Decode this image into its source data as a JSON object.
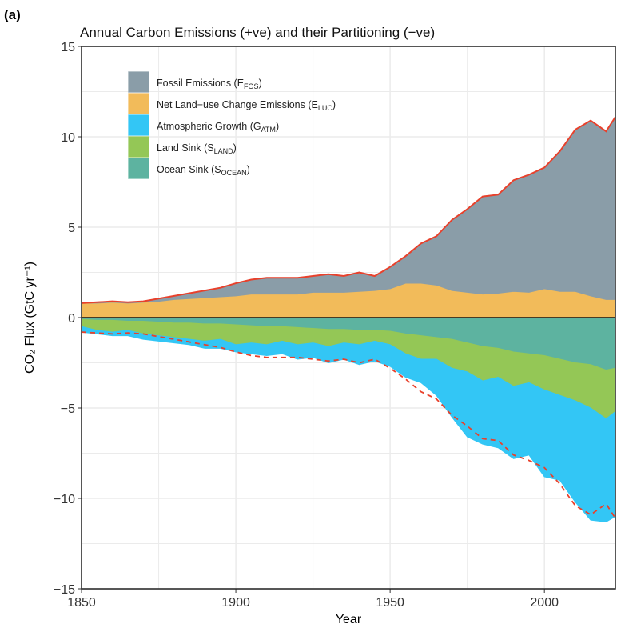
{
  "panel_label": "(a)",
  "chart_data": {
    "type": "area",
    "title": "Annual Carbon Emissions (+ve) and their Partitioning (−ve)",
    "xlabel": "Year",
    "ylabel": "CO₂ Flux (GtC yr⁻¹)",
    "xlim": [
      1850,
      2023
    ],
    "ylim": [
      -15,
      15
    ],
    "xticks": [
      "1850",
      "1900",
      "1950",
      "2000"
    ],
    "yticks": [
      "15",
      "10",
      "5",
      "0",
      "−5",
      "−10",
      "−15"
    ],
    "grid": true,
    "legend_position": "top-left",
    "x": [
      1850,
      1855,
      1860,
      1865,
      1870,
      1875,
      1880,
      1885,
      1890,
      1895,
      1900,
      1905,
      1910,
      1915,
      1920,
      1925,
      1930,
      1935,
      1940,
      1945,
      1950,
      1955,
      1960,
      1965,
      1970,
      1975,
      1980,
      1985,
      1990,
      1995,
      2000,
      2005,
      2010,
      2015,
      2020,
      2023
    ],
    "series": [
      {
        "name": "Fossil Emissions (E_FOS)",
        "label": "Fossil Emissions (E",
        "sub": "FOS",
        "sign": 1,
        "color": "#8a9da8",
        "values": [
          0.0,
          0.05,
          0.05,
          0.05,
          0.05,
          0.15,
          0.2,
          0.3,
          0.4,
          0.5,
          0.7,
          0.8,
          0.9,
          0.9,
          0.9,
          0.9,
          1.0,
          0.9,
          1.05,
          0.8,
          1.2,
          1.5,
          2.2,
          2.7,
          3.9,
          4.6,
          5.4,
          5.45,
          6.15,
          6.5,
          6.7,
          7.75,
          8.95,
          9.7,
          9.3,
          10.1
        ]
      },
      {
        "name": "Net Land-use Change Emissions (E_LUC)",
        "label": "Net Land−use Change Emissions (E",
        "sub": "LUC",
        "sign": 1,
        "color": "#f2bb5a",
        "values": [
          0.8,
          0.8,
          0.85,
          0.8,
          0.85,
          0.9,
          1.0,
          1.05,
          1.1,
          1.15,
          1.2,
          1.3,
          1.3,
          1.3,
          1.3,
          1.4,
          1.4,
          1.4,
          1.45,
          1.5,
          1.6,
          1.9,
          1.9,
          1.8,
          1.5,
          1.4,
          1.3,
          1.35,
          1.45,
          1.4,
          1.6,
          1.45,
          1.45,
          1.2,
          1.0,
          1.0
        ]
      },
      {
        "name": "Atmospheric Growth (G_ATM)",
        "label": "Atmospheric Growth (G",
        "sub": "ATM",
        "sign": -1,
        "color": "#33c6f5",
        "values": [
          0.3,
          0.2,
          0.2,
          0.3,
          0.3,
          0.3,
          0.3,
          0.3,
          0.4,
          0.5,
          0.4,
          0.6,
          0.6,
          0.7,
          0.8,
          0.8,
          0.9,
          0.9,
          1.1,
          1.1,
          1.2,
          1.3,
          1.3,
          2.0,
          2.7,
          3.6,
          3.5,
          3.9,
          4.0,
          4.0,
          4.8,
          4.7,
          5.6,
          6.2,
          5.7,
          5.8
        ]
      },
      {
        "name": "Land Sink (S_LAND)",
        "label": "Land Sink (S",
        "sub": "LAND",
        "sign": -1,
        "color": "#94c756",
        "values": [
          0.4,
          0.55,
          0.65,
          0.5,
          0.7,
          0.75,
          0.8,
          0.9,
          0.95,
          0.85,
          1.1,
          0.95,
          1.0,
          0.8,
          0.95,
          0.8,
          0.95,
          0.75,
          0.8,
          0.6,
          0.75,
          1.1,
          1.3,
          1.2,
          1.6,
          1.6,
          1.9,
          1.6,
          1.9,
          1.6,
          1.9,
          2.0,
          2.1,
          2.4,
          2.7,
          2.4
        ]
      },
      {
        "name": "Ocean Sink (S_OCEAN)",
        "label": "Ocean Sink (S",
        "sub": "OCEAN",
        "sign": -1,
        "color": "#5db3a0",
        "values": [
          0.1,
          0.15,
          0.15,
          0.2,
          0.2,
          0.25,
          0.3,
          0.3,
          0.35,
          0.35,
          0.4,
          0.45,
          0.5,
          0.5,
          0.55,
          0.6,
          0.65,
          0.65,
          0.7,
          0.7,
          0.75,
          0.9,
          1.0,
          1.1,
          1.2,
          1.4,
          1.6,
          1.7,
          1.9,
          2.0,
          2.1,
          2.3,
          2.5,
          2.6,
          2.9,
          2.8
        ]
      }
    ],
    "total_emissions_line_color": "#e8412c"
  }
}
